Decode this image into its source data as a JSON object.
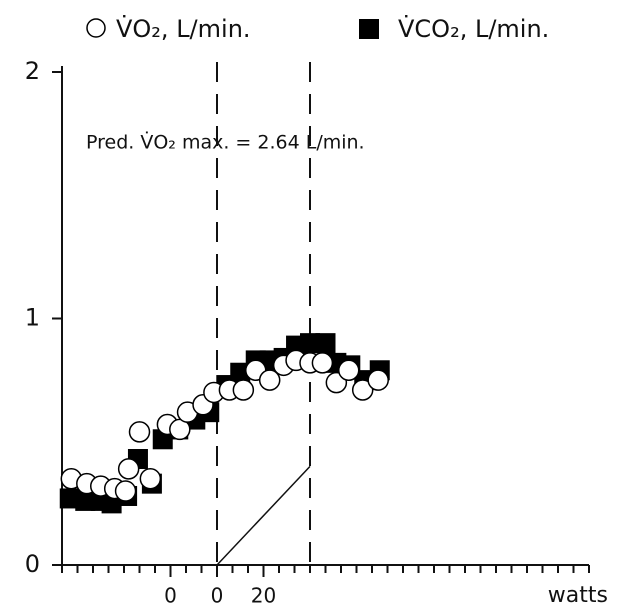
{
  "chart_data": {
    "type": "scatter",
    "annotation": "Pred. V̇O₂ max. = 2.64 L/min.",
    "xlabel": "watts",
    "xlim": [
      0,
      34
    ],
    "ylim": [
      0,
      2
    ],
    "yticks": [
      0,
      1,
      2
    ],
    "xticks": [
      {
        "value": 7,
        "label": "0"
      },
      {
        "value": 10,
        "label": "0"
      },
      {
        "value": 13,
        "label": "20"
      }
    ],
    "xminor_ticks": [
      0,
      1,
      2,
      3,
      4,
      5,
      6,
      7,
      8,
      9,
      10,
      11,
      12,
      13,
      14,
      15,
      16,
      17,
      18,
      19,
      20,
      21,
      22,
      23,
      24,
      25,
      26,
      27,
      28,
      29,
      30,
      31,
      32,
      33,
      34
    ],
    "vlines": [
      10,
      16
    ],
    "ramp": {
      "x": [
        10,
        16
      ],
      "values": [
        0,
        0.4
      ]
    },
    "series": [
      {
        "name": "V̇CO₂, L/min.",
        "color": "#000000",
        "marker": "square",
        "x": [
          0.5,
          1.5,
          2.5,
          3.2,
          4.2,
          4.9,
          5.8,
          6.5,
          7.5,
          8.6,
          9.5,
          10.6,
          11.5,
          12.5,
          13.4,
          14.3,
          15.1,
          16.0,
          17.0,
          17.7,
          18.6,
          19.5,
          20.5
        ],
        "values": [
          0.27,
          0.26,
          0.26,
          0.25,
          0.28,
          0.43,
          0.33,
          0.51,
          0.55,
          0.59,
          0.62,
          0.73,
          0.78,
          0.83,
          0.83,
          0.84,
          0.89,
          0.9,
          0.9,
          0.82,
          0.81,
          0.75,
          0.79
        ]
      },
      {
        "name": "V̇O₂, L/min.",
        "color": "#000000",
        "marker": "circle",
        "x": [
          0.6,
          1.6,
          2.5,
          3.4,
          4.1,
          4.3,
          5.0,
          5.7,
          6.8,
          7.6,
          8.1,
          9.1,
          9.8,
          10.8,
          11.7,
          12.5,
          13.4,
          14.3,
          15.1,
          16.0,
          16.8,
          17.7,
          18.5,
          19.4,
          20.4
        ],
        "values": [
          0.35,
          0.33,
          0.32,
          0.31,
          0.3,
          0.39,
          0.54,
          0.35,
          0.57,
          0.55,
          0.62,
          0.65,
          0.7,
          0.71,
          0.71,
          0.79,
          0.75,
          0.81,
          0.83,
          0.82,
          0.82,
          0.74,
          0.79,
          0.71,
          0.75
        ]
      }
    ]
  }
}
